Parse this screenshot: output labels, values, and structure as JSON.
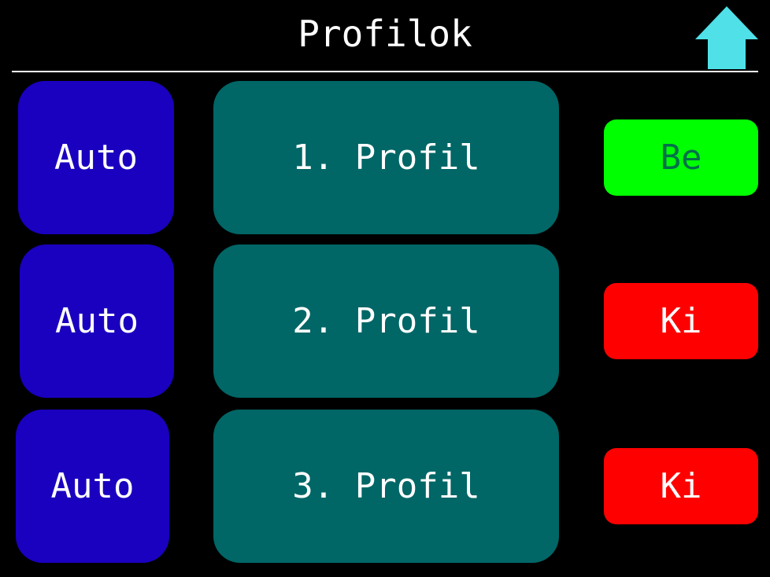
{
  "header": {
    "title": "Profilok",
    "home_icon": "up-arrow-icon",
    "home_color": "#4fe0e8"
  },
  "rows": [
    {
      "auto_label": "Auto",
      "profile_label": "1. Profil",
      "state_label": "Be",
      "state": "on"
    },
    {
      "auto_label": "Auto",
      "profile_label": "2. Profil",
      "state_label": "Ki",
      "state": "off"
    },
    {
      "auto_label": "Auto",
      "profile_label": "3. Profil",
      "state_label": "Ki",
      "state": "off"
    }
  ],
  "colors": {
    "background": "#000000",
    "auto_button": "#1a00bf",
    "profile_button": "#006666",
    "state_on": "#00ff00",
    "state_on_text": "#00704a",
    "state_off": "#ff0000"
  }
}
